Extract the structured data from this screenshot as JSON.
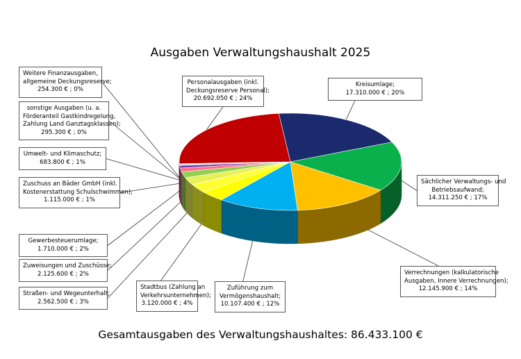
{
  "title": "Ausgaben Verwaltungshaushalt 2025",
  "footer": "Gesamtausgaben des Verwaltungshaushaltes: 86.433.100 €",
  "chart_data": {
    "type": "pie",
    "title": "Ausgaben Verwaltungshaushalt 2025",
    "total": "86.433.100 €",
    "slices": [
      {
        "lines": [
          "Kreisumlage;",
          "17.310.000 € ; 20%"
        ],
        "value": 17310000,
        "percent": 20,
        "color": "#1a2a6c"
      },
      {
        "lines": [
          "Sächlicher Verwaltungs- und",
          "Betriebsaufwand;",
          "14.311.250 € ; 17%"
        ],
        "value": 14311250,
        "percent": 17,
        "color": "#0ab04b"
      },
      {
        "lines": [
          "Verrechnungen (kalkulatorische",
          "Ausgaben, Innere Verrechnungen);",
          "12.145.900 € ; 14%"
        ],
        "value": 12145900,
        "percent": 14,
        "color": "#ffc000"
      },
      {
        "lines": [
          "Zuführung zum",
          "Vermögenshaushalt;",
          "10.107.400 € ; 12%"
        ],
        "value": 10107400,
        "percent": 12,
        "color": "#00b0f0"
      },
      {
        "lines": [
          "Stadtbus (Zahlung an",
          "Verkehrsunternehmen);",
          "3.120.000 € ; 4%"
        ],
        "value": 3120000,
        "percent": 4,
        "color": "#ffff00"
      },
      {
        "lines": [
          "Straßen- und Wegeunterhalt;",
          "2.562.500 € ; 3%"
        ],
        "value": 2562500,
        "percent": 3,
        "color": "#ffff33"
      },
      {
        "lines": [
          "Zuweisungen und Zuschüsse;",
          "2.125.600 € ; 2%"
        ],
        "value": 2125600,
        "percent": 2,
        "color": "#e8f05a"
      },
      {
        "lines": [
          "Gewerbesteuerumlage;",
          "1.710.000 € ; 2%"
        ],
        "value": 1710000,
        "percent": 2,
        "color": "#92d050"
      },
      {
        "lines": [
          "Zuschuss an Bäder GmbH (inkl.",
          "Kostenerstattung Schulschwimmen);",
          "1.115.000 € ; 1%"
        ],
        "value": 1115000,
        "percent": 1,
        "color": "#ff6f8e"
      },
      {
        "lines": [
          "Umwelt- und Klimaschutz;",
          "683.800 € ; 1%"
        ],
        "value": 683800,
        "percent": 1,
        "color": "#7030a0"
      },
      {
        "lines": [
          "sonstige Ausgaben (u. a.",
          "Förderanteil Gastkindregelung,",
          "Zahlung Land Ganztagsklassen);",
          "295.300 € ; 0%"
        ],
        "value": 295300,
        "percent": 0,
        "color": "#c0c0c0"
      },
      {
        "lines": [
          "Weitere Finanzausgaben,",
          "allgemeine Deckungsreserve;",
          "254.300 € ; 0%"
        ],
        "value": 254300,
        "percent": 0,
        "color": "#8db4e2"
      },
      {
        "lines": [
          "Personalausgaben (inkl.",
          "Deckungsreserve Personal);",
          "20.692.050 € ; 24%"
        ],
        "value": 20692050,
        "percent": 24,
        "color": "#c00000"
      }
    ]
  }
}
